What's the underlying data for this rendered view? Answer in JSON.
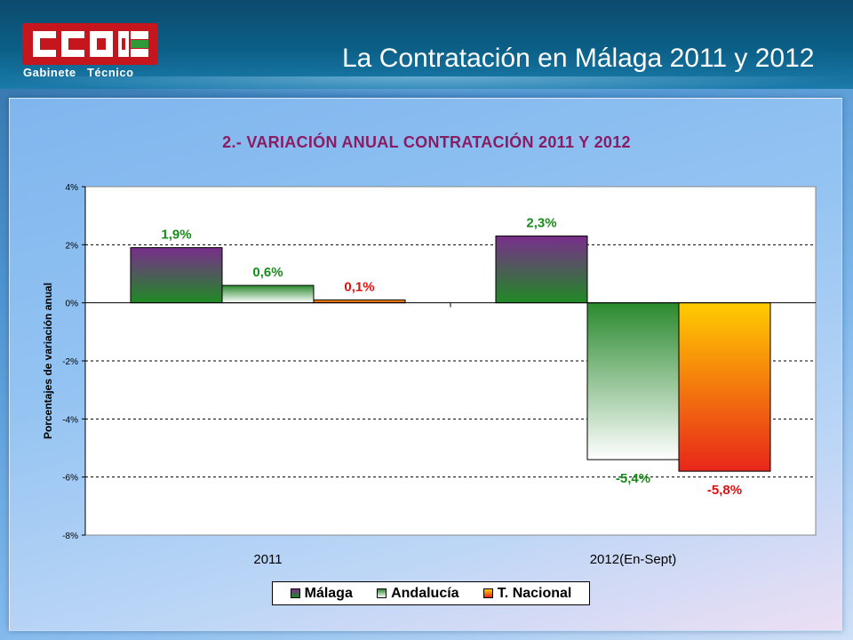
{
  "header": {
    "logo_text": "CCOO",
    "logo_subtitle": "Gabinete   Técnico",
    "title": "La Contratación en Málaga 2011 y 2012"
  },
  "colors": {
    "malaga_top": "#7a2e8c",
    "malaga_bottom": "#1f8a24",
    "andalucia_top": "#2a8a2e",
    "andalucia_bottom": "#ffffff",
    "nacional_top": "#ffcc00",
    "nacional_bottom": "#e8261a",
    "label_green": "#1a8a1a",
    "label_red": "#e01010",
    "title_color": "#8a1c63"
  },
  "chart_data": {
    "type": "bar",
    "title": "2.- VARIACIÓN ANUAL CONTRATACIÓN 2011 Y 2012",
    "xlabel": "",
    "ylabel": "Porcentajes de variación anual",
    "categories": [
      "2011",
      "2012(En-Sept)"
    ],
    "series": [
      {
        "name": "Málaga",
        "values": [
          1.9,
          2.3
        ],
        "labels": [
          "1,9%",
          "2,3%"
        ]
      },
      {
        "name": "Andalucía",
        "values": [
          0.6,
          -5.4
        ],
        "labels": [
          "0,6%",
          "-5,4%"
        ]
      },
      {
        "name": "T. Nacional",
        "values": [
          0.1,
          -5.8
        ],
        "labels": [
          "0,1%",
          "-5,8%"
        ]
      }
    ],
    "ylim": [
      -8,
      4
    ],
    "yticks": [
      4,
      2,
      0,
      -2,
      -4,
      -6,
      -8
    ],
    "ytick_labels": [
      "4%",
      "2%",
      "0%",
      "-2%",
      "-4%",
      "-6%",
      "-8%"
    ],
    "grid": "dashed horizontal",
    "legend": "bottom"
  }
}
